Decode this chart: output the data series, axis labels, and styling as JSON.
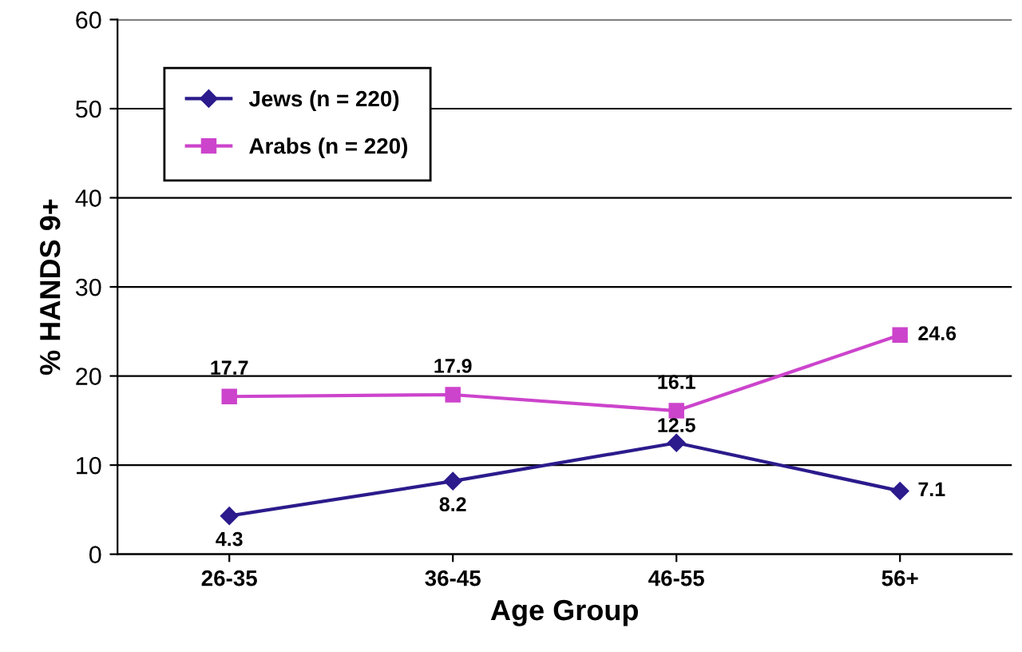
{
  "chart_data": {
    "type": "line",
    "xlabel": "Age Group",
    "ylabel": "% HANDS 9+",
    "categories": [
      "26-35",
      "36-45",
      "46-55",
      "56+"
    ],
    "series": [
      {
        "name": "Jews (n = 220)",
        "color": "#2b1b8c",
        "marker": "diamond",
        "values": [
          4.3,
          8.2,
          12.5,
          7.1
        ]
      },
      {
        "name": "Arabs (n = 220)",
        "color": "#cc44cc",
        "marker": "square",
        "values": [
          17.7,
          17.9,
          16.1,
          24.6
        ]
      }
    ],
    "ylim": [
      0,
      60
    ],
    "yticks": [
      0,
      10,
      20,
      30,
      40,
      50,
      60
    ],
    "grid": "y",
    "legend": "top left",
    "data_labels": true
  }
}
